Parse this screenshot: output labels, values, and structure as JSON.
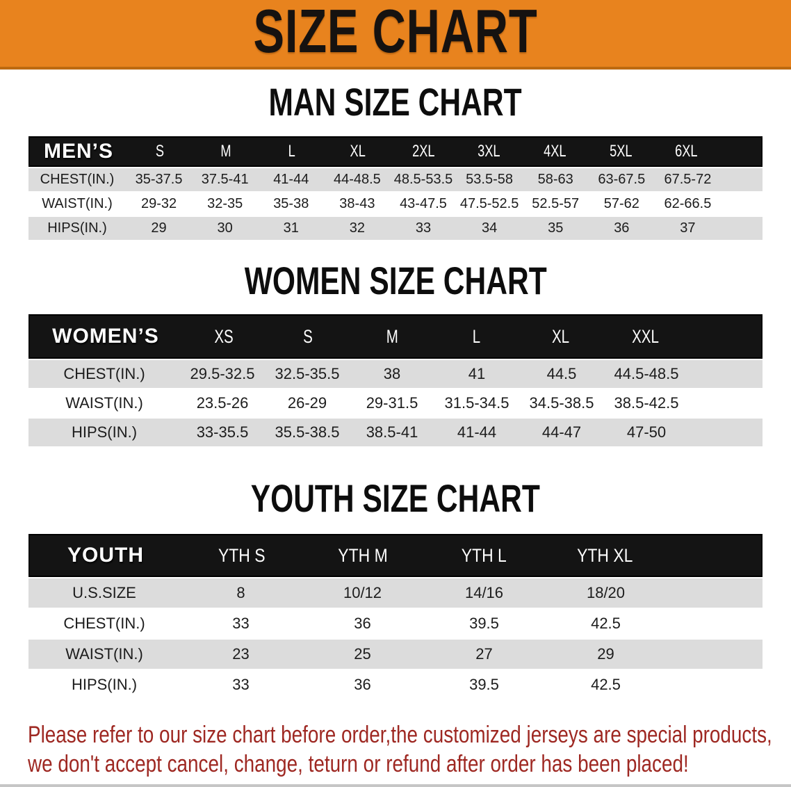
{
  "banner": {
    "title": "SIZE CHART"
  },
  "sections": [
    {
      "heading": "MAN SIZE CHART",
      "table": {
        "label": "MEN’S",
        "columns": [
          "S",
          "M",
          "L",
          "XL",
          "2XL",
          "3XL",
          "4XL",
          "5XL",
          "6XL"
        ],
        "rows": [
          {
            "label": "CHEST(IN.)",
            "values": [
              "35-37.5",
              "37.5-41",
              "41-44",
              "44-48.5",
              "48.5-53.5",
              "53.5-58",
              "58-63",
              "63-67.5",
              "67.5-72"
            ]
          },
          {
            "label": "WAIST(IN.)",
            "values": [
              "29-32",
              "32-35",
              "35-38",
              "38-43",
              "43-47.5",
              "47.5-52.5",
              "52.5-57",
              "57-62",
              "62-66.5"
            ]
          },
          {
            "label": "HIPS(IN.)",
            "values": [
              "29",
              "30",
              "31",
              "32",
              "33",
              "34",
              "35",
              "36",
              "37"
            ]
          }
        ]
      }
    },
    {
      "heading": "WOMEN SIZE CHART",
      "table": {
        "label": "WOMEN’S",
        "columns": [
          "XS",
          "S",
          "M",
          "L",
          "XL",
          "XXL"
        ],
        "rows": [
          {
            "label": "CHEST(IN.)",
            "values": [
              "29.5-32.5",
              "32.5-35.5",
              "38",
              "41",
              "44.5",
              "44.5-48.5"
            ]
          },
          {
            "label": "WAIST(IN.)",
            "values": [
              "23.5-26",
              "26-29",
              "29-31.5",
              "31.5-34.5",
              "34.5-38.5",
              "38.5-42.5"
            ]
          },
          {
            "label": "HIPS(IN.)",
            "values": [
              "33-35.5",
              "35.5-38.5",
              "38.5-41",
              "41-44",
              "44-47",
              "47-50"
            ]
          }
        ]
      }
    },
    {
      "heading": "YOUTH SIZE CHART",
      "table": {
        "label": "YOUTH",
        "columns": [
          "YTH S",
          "YTH M",
          "YTH L",
          "YTH XL"
        ],
        "rows": [
          {
            "label": "U.S.SIZE",
            "values": [
              "8",
              "10/12",
              "14/16",
              "18/20"
            ]
          },
          {
            "label": "CHEST(IN.)",
            "values": [
              "33",
              "36",
              "39.5",
              "42.5"
            ]
          },
          {
            "label": "WAIST(IN.)",
            "values": [
              "23",
              "25",
              "27",
              "29"
            ]
          },
          {
            "label": "HIPS(IN.)",
            "values": [
              "33",
              "36",
              "39.5",
              "42.5"
            ]
          }
        ]
      }
    }
  ],
  "disclaimer": {
    "line1": "Please refer to our size chart before order,the customized jerseys are special products,",
    "line2": "we don't accept cancel, change, teturn or refund after order has been placed!"
  },
  "colors": {
    "banner_orange": "#e8831e",
    "header_black": "#141414",
    "row_gray": "#dcdcdc",
    "disclaimer_red": "#9e2822"
  }
}
